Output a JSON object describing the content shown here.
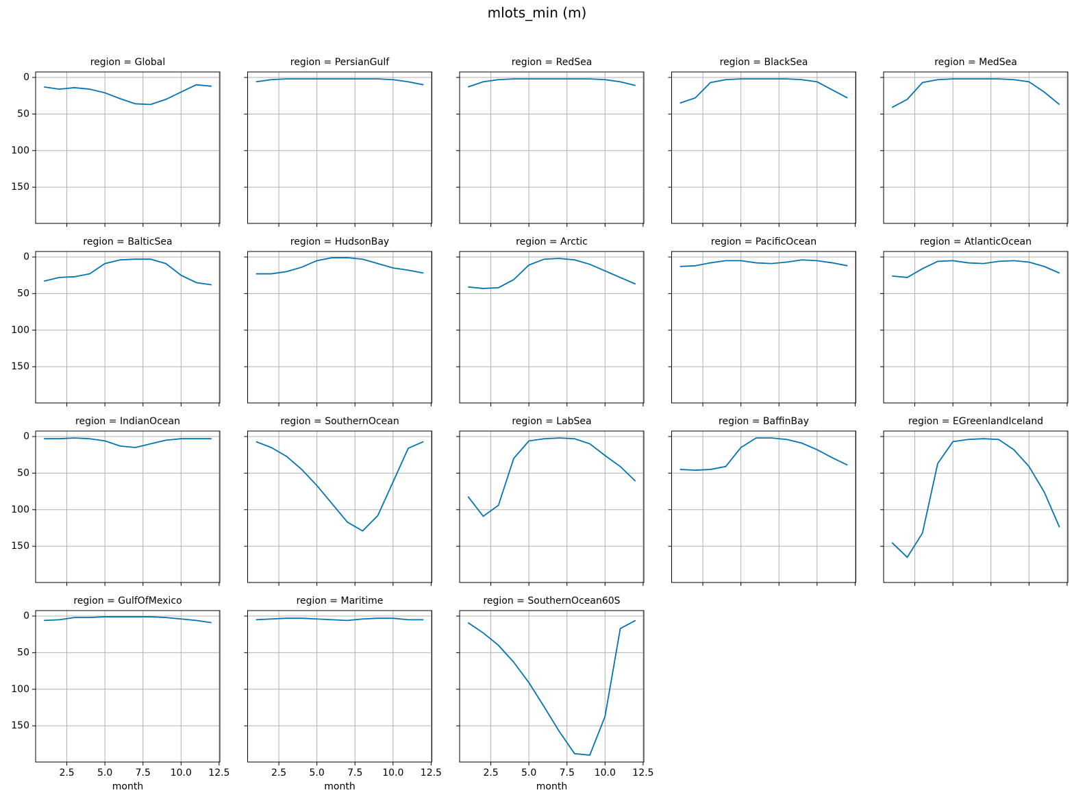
{
  "chart_data": {
    "type": "line",
    "title": "mlots_min (m)",
    "xlabel": "month",
    "color": "#0173b2",
    "grid": true,
    "x": [
      1,
      2,
      3,
      4,
      5,
      6,
      7,
      8,
      9,
      10,
      11,
      12
    ],
    "xlim": [
      0.45,
      12.55
    ],
    "xticks": [
      2.5,
      {
        "value": 5,
        "label": "5.0"
      },
      7.5,
      {
        "value": 10,
        "label": "10.0"
      },
      12.5
    ],
    "ylim": [
      199.5,
      -7.5
    ],
    "yticks": [
      0,
      50,
      100,
      150
    ],
    "panels": [
      {
        "title": "region = Global",
        "values": [
          13,
          16,
          14,
          16,
          21,
          29,
          36,
          37,
          30,
          20,
          10,
          12
        ]
      },
      {
        "title": "region = PersianGulf",
        "values": [
          6,
          3,
          2,
          2,
          2,
          2,
          2,
          2,
          2,
          3,
          6,
          10
        ]
      },
      {
        "title": "region = RedSea",
        "values": [
          13,
          6,
          3,
          2,
          2,
          2,
          2,
          2,
          2,
          3,
          6,
          11
        ]
      },
      {
        "title": "region = BlackSea",
        "values": [
          35,
          28,
          7,
          3,
          2,
          2,
          2,
          2,
          3,
          6,
          17,
          28
        ]
      },
      {
        "title": "region = MedSea",
        "values": [
          41,
          30,
          7,
          3,
          2,
          2,
          2,
          2,
          3,
          6,
          20,
          37
        ]
      },
      {
        "title": "region = BalticSea",
        "values": [
          33,
          28,
          27,
          23,
          9,
          4,
          3,
          3,
          9,
          25,
          35,
          38
        ]
      },
      {
        "title": "region = HudsonBay",
        "values": [
          23,
          23,
          20,
          14,
          5,
          1,
          1,
          3,
          9,
          15,
          18,
          22
        ]
      },
      {
        "title": "region = Arctic",
        "values": [
          41,
          43,
          42,
          31,
          11,
          3,
          2,
          4,
          10,
          19,
          28,
          37
        ]
      },
      {
        "title": "region = PacificOcean",
        "values": [
          13,
          12,
          8,
          5,
          5,
          8,
          9,
          7,
          4,
          5,
          8,
          12
        ]
      },
      {
        "title": "region = AtlanticOcean",
        "values": [
          26,
          28,
          16,
          6,
          5,
          8,
          9,
          6,
          5,
          7,
          13,
          22
        ]
      },
      {
        "title": "region = IndianOcean",
        "values": [
          3,
          3,
          2,
          3,
          6,
          13,
          15,
          10,
          5,
          3,
          3,
          3
        ]
      },
      {
        "title": "region = SouthernOcean",
        "values": [
          7,
          15,
          27,
          45,
          67,
          92,
          117,
          129,
          108,
          62,
          16,
          7
        ]
      },
      {
        "title": "region = LabSea",
        "values": [
          82,
          109,
          94,
          30,
          6,
          3,
          2,
          3,
          10,
          26,
          41,
          61
        ]
      },
      {
        "title": "region = BaffinBay",
        "values": [
          45,
          46,
          45,
          41,
          15,
          2,
          2,
          4,
          9,
          18,
          29,
          39
        ]
      },
      {
        "title": "region = EGreenlandIceland",
        "values": [
          145,
          165,
          132,
          37,
          7,
          4,
          3,
          4,
          18,
          41,
          76,
          124
        ]
      },
      {
        "title": "region = GulfOfMexico",
        "values": [
          6,
          5,
          2,
          2,
          1,
          1,
          1,
          1,
          2,
          4,
          6,
          9
        ]
      },
      {
        "title": "region = Maritime",
        "values": [
          5,
          4,
          3,
          3,
          4,
          5,
          6,
          4,
          3,
          3,
          5,
          5
        ]
      },
      {
        "title": "region = SouthernOcean60S",
        "values": [
          9,
          23,
          40,
          63,
          91,
          124,
          158,
          188,
          190,
          137,
          17,
          6
        ]
      }
    ]
  }
}
